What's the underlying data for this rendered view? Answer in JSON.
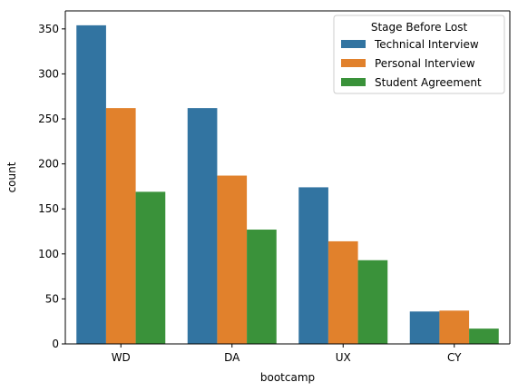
{
  "chart_data": {
    "type": "bar",
    "xlabel": "bootcamp",
    "ylabel": "count",
    "categories": [
      "WD",
      "DA",
      "UX",
      "CY"
    ],
    "ylim": [
      0,
      370
    ],
    "yticks": [
      0,
      50,
      100,
      150,
      200,
      250,
      300,
      350
    ],
    "grid": false,
    "legend": {
      "title": "Stage Before Lost",
      "placement": "top-right"
    },
    "series": [
      {
        "name": "Technical Interview",
        "color": "#3274a1",
        "values": [
          354,
          262,
          174,
          36
        ]
      },
      {
        "name": "Personal Interview",
        "color": "#e1812c",
        "values": [
          262,
          187,
          114,
          37
        ]
      },
      {
        "name": "Student Agreement",
        "color": "#3a923a",
        "values": [
          169,
          127,
          93,
          17
        ]
      }
    ]
  }
}
